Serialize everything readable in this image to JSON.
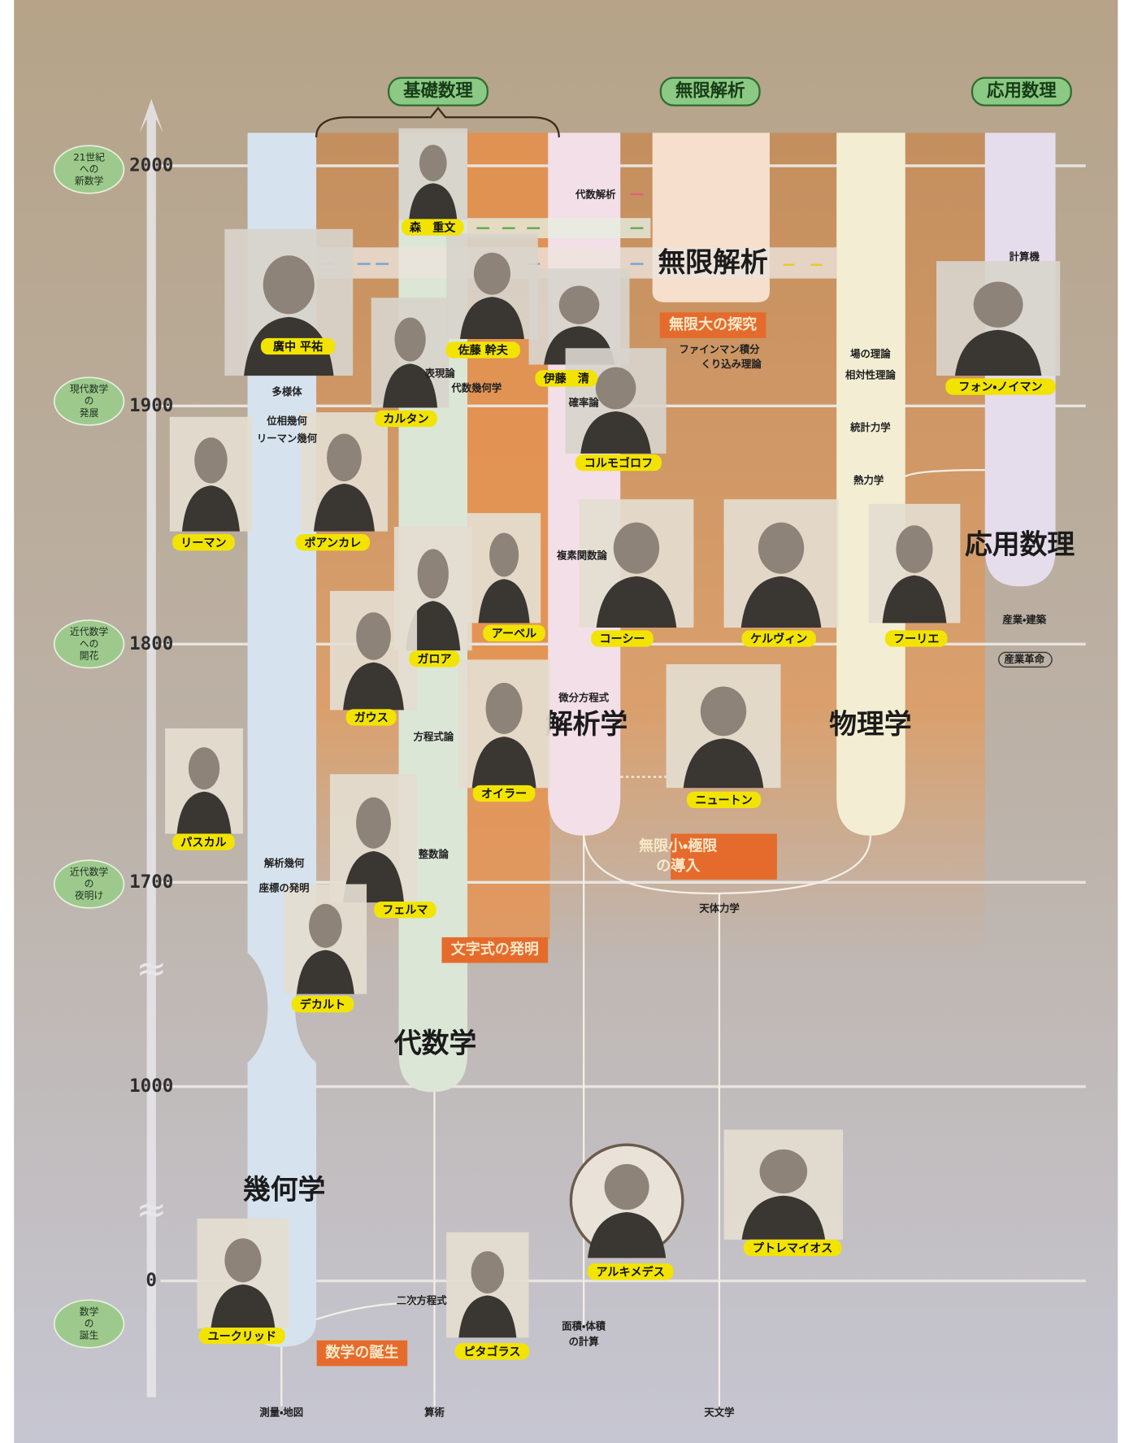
{
  "branches": [
    "基礎数理",
    "無限解析",
    "応用数理"
  ],
  "eras": [
    {
      "year": "2000",
      "label": [
        "21世紀",
        "への",
        "新数学"
      ]
    },
    {
      "year": "1900",
      "label": [
        "現代数学",
        "の",
        "発展"
      ]
    },
    {
      "year": "1800",
      "label": [
        "近代数学",
        "への",
        "開花"
      ]
    },
    {
      "year": "1700",
      "label": [
        "近代数学",
        "の",
        "夜明け"
      ]
    },
    {
      "year": "1000",
      "label": []
    },
    {
      "year": "0",
      "label": [
        "数学",
        "の",
        "誕生"
      ]
    }
  ],
  "breaks": [
    "≈",
    "≈"
  ],
  "fields": [
    "幾何学",
    "代数学",
    "解析学",
    "物理学",
    "無限解析",
    "応用数理"
  ],
  "themes": [
    [
      "無限大の探究"
    ],
    [
      "無限小・極限",
      "の導入"
    ],
    [
      "文字式の発明"
    ],
    [
      "数学の誕生"
    ]
  ],
  "people": [
    "森　重文",
    "廣中 平祐",
    "佐藤 幹夫",
    "伊藤　清",
    "カルタン",
    "コルモゴロフ",
    "フォン・ノイマン",
    "リーマン",
    "ポアンカレ",
    "アーベル",
    "ガロア",
    "コーシー",
    "ケルヴィン",
    "フーリエ",
    "ガウス",
    "オイラー",
    "ニュートン",
    "パスカル",
    "フェルマ",
    "デカルト",
    "ユークリッド",
    "ピタゴラス",
    "アルキメデス",
    "プトレマイオス"
  ],
  "topics": [
    "代数解析",
    "計算機",
    "ファインマン積分",
    "くり込み理論",
    "場の理論",
    "相対性理論",
    "統計力学",
    "熱力学",
    "多様体",
    "位相幾何",
    "リーマン幾何",
    "表現論",
    "代数幾何学",
    "確率論",
    "複素関数論",
    "産業・建築",
    "産業革命",
    "微分方程式",
    "方程式論",
    "整数論",
    "解析幾何",
    "座標の発明",
    "天体力学",
    "二次方程式",
    "面積・体積",
    "の計算",
    "測量・地図",
    "算術",
    "天文学"
  ]
}
